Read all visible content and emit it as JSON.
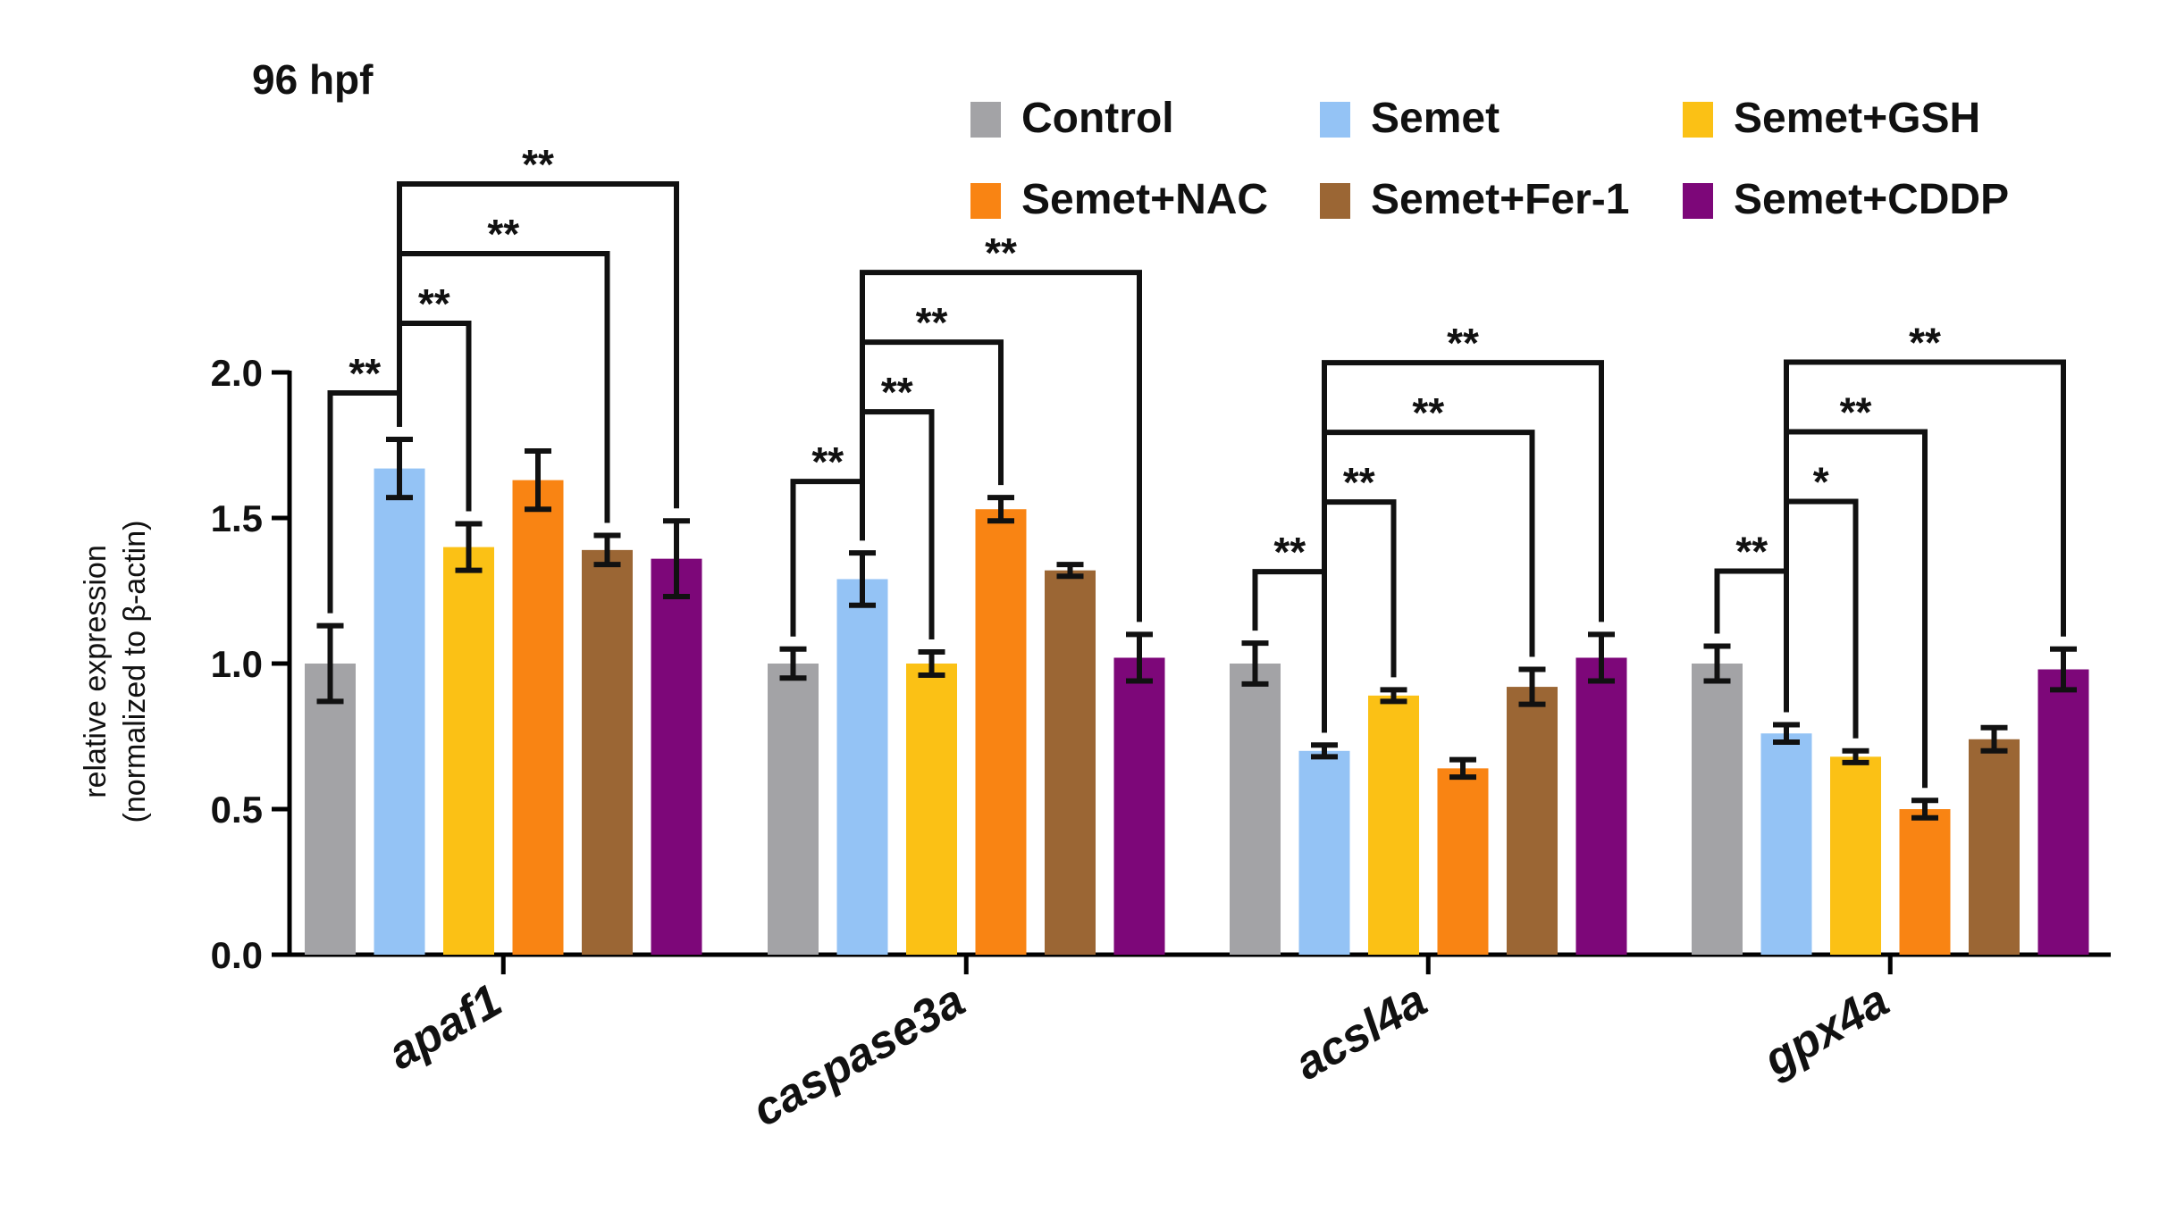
{
  "chart_data": {
    "type": "bar",
    "title": "96 hpf",
    "ylabel_line1": "relative expression",
    "ylabel_line2": "(normalized to β-actin)",
    "xlabel": "",
    "ylim": [
      0,
      2.0
    ],
    "yticks": [
      0.0,
      0.5,
      1.0,
      1.5,
      2.0
    ],
    "ytick_labels": [
      "0.0",
      "0.5",
      "1.0",
      "1.5",
      "2.0"
    ],
    "categories": [
      "apaf1",
      "caspase3a",
      "acsl4a",
      "gpx4a"
    ],
    "legend_position": "top-right",
    "series": [
      {
        "name": "Control",
        "color": "#A3A3A6",
        "values": [
          1.0,
          1.0,
          1.0,
          1.0
        ],
        "errors": [
          0.13,
          0.05,
          0.07,
          0.06
        ]
      },
      {
        "name": "Semet",
        "color": "#94C3F5",
        "values": [
          1.67,
          1.29,
          0.7,
          0.76
        ],
        "errors": [
          0.1,
          0.09,
          0.02,
          0.03
        ]
      },
      {
        "name": "Semet+GSH",
        "color": "#FBC115",
        "values": [
          1.4,
          1.0,
          0.89,
          0.68
        ],
        "errors": [
          0.08,
          0.04,
          0.02,
          0.02
        ]
      },
      {
        "name": "Semet+NAC",
        "color": "#F98413",
        "values": [
          1.63,
          1.53,
          0.64,
          0.5
        ],
        "errors": [
          0.1,
          0.04,
          0.03,
          0.03
        ]
      },
      {
        "name": "Semet+Fer-1",
        "color": "#9B6634",
        "values": [
          1.39,
          1.32,
          0.92,
          0.74
        ],
        "errors": [
          0.05,
          0.02,
          0.06,
          0.04
        ]
      },
      {
        "name": "Semet+CDDP",
        "color": "#7D0779",
        "values": [
          1.36,
          1.02,
          1.02,
          0.98
        ],
        "errors": [
          0.13,
          0.08,
          0.08,
          0.07
        ]
      }
    ],
    "significance": [
      {
        "group": 0,
        "from": 0,
        "to": 1,
        "label": "**"
      },
      {
        "group": 0,
        "from": 1,
        "to": 2,
        "label": "**"
      },
      {
        "group": 0,
        "from": 1,
        "to": 4,
        "label": "**"
      },
      {
        "group": 0,
        "from": 1,
        "to": 5,
        "label": "**"
      },
      {
        "group": 1,
        "from": 0,
        "to": 1,
        "label": "**"
      },
      {
        "group": 1,
        "from": 1,
        "to": 2,
        "label": "**"
      },
      {
        "group": 1,
        "from": 1,
        "to": 3,
        "label": "**"
      },
      {
        "group": 1,
        "from": 1,
        "to": 5,
        "label": "**"
      },
      {
        "group": 2,
        "from": 0,
        "to": 1,
        "label": "**"
      },
      {
        "group": 2,
        "from": 1,
        "to": 2,
        "label": "**"
      },
      {
        "group": 2,
        "from": 1,
        "to": 4,
        "label": "**"
      },
      {
        "group": 2,
        "from": 1,
        "to": 5,
        "label": "**"
      },
      {
        "group": 3,
        "from": 0,
        "to": 1,
        "label": "**"
      },
      {
        "group": 3,
        "from": 1,
        "to": 2,
        "label": "*"
      },
      {
        "group": 3,
        "from": 1,
        "to": 3,
        "label": "**"
      },
      {
        "group": 3,
        "from": 1,
        "to": 5,
        "label": "**"
      }
    ]
  }
}
